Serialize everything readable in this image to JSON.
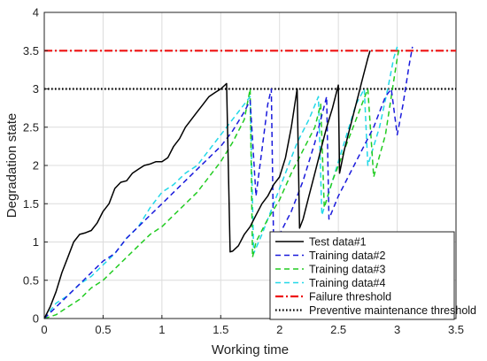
{
  "chart_data": {
    "type": "line",
    "title": "",
    "xlabel": "Working time",
    "ylabel": "Degradation state",
    "xlim": [
      0,
      3.5
    ],
    "ylim": [
      0,
      4
    ],
    "xticks": [
      "0",
      "0.5",
      "1",
      "1.5",
      "2",
      "2.5",
      "3",
      "3.5"
    ],
    "yticks": [
      "0",
      "0.5",
      "1",
      "1.5",
      "2",
      "2.5",
      "3",
      "3.5",
      "4"
    ],
    "grid": true,
    "legend_position": "bottom-right",
    "series": [
      {
        "name": "Test data#1",
        "color": "#000000",
        "style": "solid",
        "points": [
          [
            0,
            0
          ],
          [
            0.05,
            0.15
          ],
          [
            0.1,
            0.35
          ],
          [
            0.15,
            0.6
          ],
          [
            0.2,
            0.8
          ],
          [
            0.25,
            1.0
          ],
          [
            0.3,
            1.1
          ],
          [
            0.35,
            1.12
          ],
          [
            0.4,
            1.15
          ],
          [
            0.45,
            1.25
          ],
          [
            0.5,
            1.4
          ],
          [
            0.55,
            1.5
          ],
          [
            0.6,
            1.7
          ],
          [
            0.65,
            1.78
          ],
          [
            0.7,
            1.8
          ],
          [
            0.75,
            1.9
          ],
          [
            0.8,
            1.95
          ],
          [
            0.85,
            2.0
          ],
          [
            0.9,
            2.02
          ],
          [
            0.95,
            2.05
          ],
          [
            1.0,
            2.05
          ],
          [
            1.05,
            2.1
          ],
          [
            1.1,
            2.25
          ],
          [
            1.15,
            2.35
          ],
          [
            1.2,
            2.5
          ],
          [
            1.25,
            2.6
          ],
          [
            1.3,
            2.7
          ],
          [
            1.35,
            2.8
          ],
          [
            1.4,
            2.9
          ],
          [
            1.45,
            2.95
          ],
          [
            1.5,
            3.0
          ],
          [
            1.55,
            3.07
          ],
          [
            1.58,
            0.87
          ],
          [
            1.6,
            0.88
          ],
          [
            1.65,
            0.95
          ],
          [
            1.7,
            1.1
          ],
          [
            1.75,
            1.2
          ],
          [
            1.8,
            1.35
          ],
          [
            1.85,
            1.5
          ],
          [
            1.9,
            1.6
          ],
          [
            1.95,
            1.75
          ],
          [
            2.0,
            1.85
          ],
          [
            2.05,
            2.1
          ],
          [
            2.1,
            2.5
          ],
          [
            2.15,
            3.0
          ],
          [
            2.17,
            1.18
          ],
          [
            2.2,
            1.3
          ],
          [
            2.25,
            1.6
          ],
          [
            2.3,
            1.9
          ],
          [
            2.35,
            2.2
          ],
          [
            2.4,
            2.5
          ],
          [
            2.45,
            2.75
          ],
          [
            2.5,
            3.05
          ],
          [
            2.51,
            1.9
          ],
          [
            2.55,
            2.2
          ],
          [
            2.6,
            2.5
          ],
          [
            2.65,
            2.8
          ],
          [
            2.7,
            3.1
          ],
          [
            2.75,
            3.4
          ],
          [
            2.77,
            3.5
          ]
        ]
      },
      {
        "name": "Training data#2",
        "color": "#1a1adc",
        "style": "dashed",
        "points": [
          [
            0,
            0
          ],
          [
            0.1,
            0.15
          ],
          [
            0.2,
            0.3
          ],
          [
            0.3,
            0.45
          ],
          [
            0.4,
            0.6
          ],
          [
            0.5,
            0.75
          ],
          [
            0.6,
            0.85
          ],
          [
            0.7,
            1.05
          ],
          [
            0.8,
            1.2
          ],
          [
            0.9,
            1.35
          ],
          [
            1.0,
            1.5
          ],
          [
            1.1,
            1.65
          ],
          [
            1.2,
            1.8
          ],
          [
            1.3,
            1.95
          ],
          [
            1.4,
            2.1
          ],
          [
            1.5,
            2.25
          ],
          [
            1.6,
            2.45
          ],
          [
            1.7,
            2.7
          ],
          [
            1.75,
            2.85
          ],
          [
            1.8,
            1.6
          ],
          [
            1.85,
            2.2
          ],
          [
            1.9,
            2.8
          ],
          [
            1.93,
            3.0
          ],
          [
            1.95,
            0.9
          ],
          [
            2.0,
            1.1
          ],
          [
            2.1,
            1.4
          ],
          [
            2.2,
            1.8
          ],
          [
            2.3,
            2.3
          ],
          [
            2.4,
            2.9
          ],
          [
            2.42,
            1.3
          ],
          [
            2.5,
            1.6
          ],
          [
            2.6,
            1.9
          ],
          [
            2.7,
            2.2
          ],
          [
            2.8,
            2.5
          ],
          [
            2.9,
            2.9
          ],
          [
            2.95,
            3.0
          ],
          [
            3.0,
            2.4
          ],
          [
            3.05,
            2.8
          ],
          [
            3.1,
            3.3
          ],
          [
            3.13,
            3.55
          ]
        ]
      },
      {
        "name": "Training data#3",
        "color": "#22cc22",
        "style": "dashed",
        "points": [
          [
            0,
            0
          ],
          [
            0.1,
            0.05
          ],
          [
            0.2,
            0.15
          ],
          [
            0.3,
            0.25
          ],
          [
            0.4,
            0.4
          ],
          [
            0.5,
            0.5
          ],
          [
            0.6,
            0.65
          ],
          [
            0.7,
            0.8
          ],
          [
            0.8,
            0.95
          ],
          [
            0.9,
            1.1
          ],
          [
            1.0,
            1.2
          ],
          [
            1.1,
            1.35
          ],
          [
            1.2,
            1.5
          ],
          [
            1.3,
            1.65
          ],
          [
            1.4,
            1.85
          ],
          [
            1.5,
            2.05
          ],
          [
            1.6,
            2.3
          ],
          [
            1.7,
            2.6
          ],
          [
            1.75,
            3.0
          ],
          [
            1.77,
            0.8
          ],
          [
            1.8,
            1.0
          ],
          [
            1.9,
            1.3
          ],
          [
            2.0,
            1.55
          ],
          [
            2.1,
            1.9
          ],
          [
            2.2,
            2.2
          ],
          [
            2.3,
            2.5
          ],
          [
            2.35,
            2.8
          ],
          [
            2.38,
            1.45
          ],
          [
            2.45,
            1.8
          ],
          [
            2.55,
            2.2
          ],
          [
            2.65,
            2.6
          ],
          [
            2.75,
            3.0
          ],
          [
            2.8,
            1.85
          ],
          [
            2.9,
            2.4
          ],
          [
            2.95,
            2.9
          ],
          [
            3.0,
            3.4
          ],
          [
            3.02,
            3.55
          ]
        ]
      },
      {
        "name": "Training data#4",
        "color": "#22d8e8",
        "style": "dashed",
        "points": [
          [
            0,
            0
          ],
          [
            0.05,
            0.1
          ],
          [
            0.1,
            0.2
          ],
          [
            0.2,
            0.3
          ],
          [
            0.3,
            0.45
          ],
          [
            0.4,
            0.55
          ],
          [
            0.5,
            0.7
          ],
          [
            0.6,
            0.85
          ],
          [
            0.7,
            1.05
          ],
          [
            0.8,
            1.2
          ],
          [
            0.9,
            1.45
          ],
          [
            1.0,
            1.65
          ],
          [
            1.1,
            1.75
          ],
          [
            1.2,
            1.9
          ],
          [
            1.3,
            2.0
          ],
          [
            1.4,
            2.2
          ],
          [
            1.5,
            2.4
          ],
          [
            1.6,
            2.6
          ],
          [
            1.7,
            2.8
          ],
          [
            1.75,
            2.9
          ],
          [
            1.78,
            0.85
          ],
          [
            1.85,
            1.1
          ],
          [
            1.95,
            1.5
          ],
          [
            2.05,
            1.9
          ],
          [
            2.15,
            2.3
          ],
          [
            2.25,
            2.6
          ],
          [
            2.33,
            2.9
          ],
          [
            2.36,
            1.35
          ],
          [
            2.45,
            1.8
          ],
          [
            2.55,
            2.3
          ],
          [
            2.65,
            2.8
          ],
          [
            2.72,
            3.0
          ],
          [
            2.75,
            2.0
          ],
          [
            2.85,
            2.5
          ],
          [
            2.92,
            3.0
          ],
          [
            2.97,
            3.4
          ],
          [
            3.0,
            3.55
          ]
        ]
      },
      {
        "name": "Failure threshold",
        "color": "#ee1111",
        "style": "dashdot",
        "points": [
          [
            0,
            3.5
          ],
          [
            3.5,
            3.5
          ]
        ]
      },
      {
        "name": "Preventive maintenance threshold",
        "color": "#000000",
        "style": "dotted",
        "points": [
          [
            0,
            3
          ],
          [
            3.5,
            3
          ]
        ]
      }
    ]
  }
}
